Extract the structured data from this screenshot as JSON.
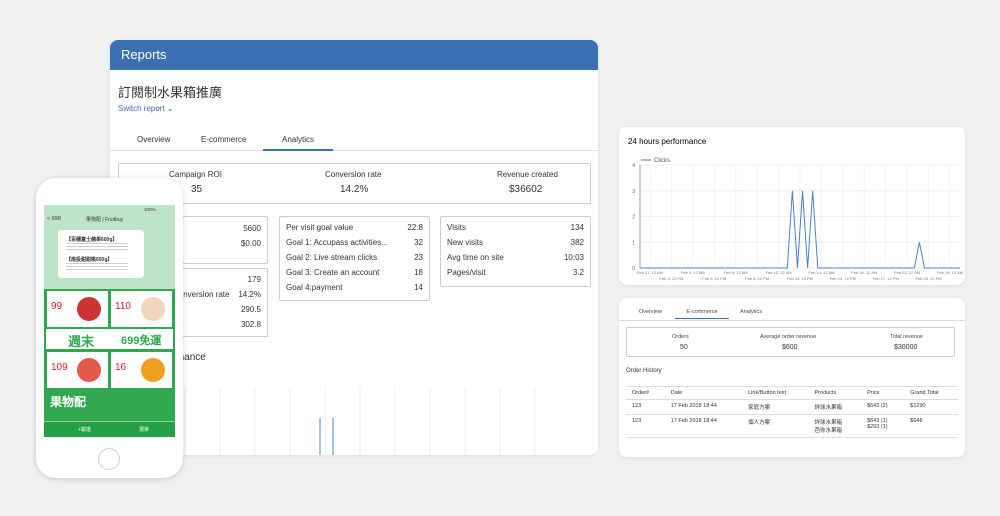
{
  "reports": {
    "header": "Reports",
    "title": "訂閱制水果箱推廣",
    "switch": "Switch report ⌄",
    "tabs": [
      "Overview",
      "E-commerce",
      "Analytics"
    ],
    "summary": [
      {
        "label": "Campaign ROI",
        "value": "35"
      },
      {
        "label": "Conversion rate",
        "value": "14.2%"
      },
      {
        "label": "Revenue created",
        "value": "$36602"
      }
    ],
    "box1": [
      "5600",
      "$0.00"
    ],
    "box2": [
      {
        "value": "179"
      },
      {
        "label": "Conversion rate",
        "value": "14.2%"
      },
      {
        "value": "290.5"
      },
      {
        "value": "302.8"
      }
    ],
    "goals": [
      [
        "Per visit goal value",
        "22.8"
      ],
      [
        "Goal 1: Accupass activities...",
        "32"
      ],
      [
        "Goal 2: Live stream clicks",
        "23"
      ],
      [
        "Goal 3: Create an account",
        "18"
      ],
      [
        "Goal 4:payment",
        "14"
      ]
    ],
    "visits": [
      [
        "Visits",
        "134"
      ],
      [
        "New visits",
        "382"
      ],
      [
        "Avg time on site",
        "10:03"
      ],
      [
        "Pages/visit",
        "3.2"
      ]
    ],
    "performance_title": "24 hours performance"
  },
  "clicks_chart": {
    "type": "line",
    "title": "24 hours performance",
    "legend": "Clicks",
    "color": "#4a7fd6",
    "ylim": [
      0,
      4
    ],
    "yticks": [
      0,
      1,
      2,
      3,
      4
    ],
    "xlabels": [
      "Feb 21, 12 AM",
      "Feb 3, 12 PM",
      "Feb 4, 12 AM",
      "Feb 5, 12 PM",
      "Feb 8, 12 AM",
      "Feb 9, 12 PM",
      "Feb 12, 12 AM",
      "Feb 13, 12 PM",
      "Feb 14, 12 AM",
      "Feb 15, 12 PM",
      "Feb 16, 12 AM",
      "Feb 17, 12 PM",
      "Feb 22, 12 AM",
      "Feb 23, 12 PM",
      "Feb 24, 12 AM"
    ],
    "values": [
      0,
      0,
      0,
      0,
      0,
      0,
      0,
      0,
      0,
      0,
      0,
      0,
      0,
      0,
      0,
      0,
      0,
      0,
      0,
      0,
      0,
      0,
      0,
      0,
      0,
      0,
      0,
      0,
      0,
      0,
      3,
      0,
      3,
      0,
      3,
      0,
      0,
      0,
      0,
      0,
      0,
      0,
      0,
      0,
      0,
      0,
      0,
      0,
      0,
      0,
      0,
      0,
      0,
      0,
      0,
      1,
      0,
      0,
      0,
      0,
      0,
      0,
      0,
      0
    ]
  },
  "orders": {
    "tabs": [
      "Overview",
      "E-commerce",
      "Analytics"
    ],
    "summary": [
      [
        "Orders",
        "50"
      ],
      [
        "Average order revenue",
        "$600"
      ],
      [
        "Total revenue",
        "$30000"
      ]
    ],
    "history_title": "Order History",
    "columns": [
      "Order#",
      "Date",
      "Link/Button text",
      "Products",
      "Price",
      "Grand Total"
    ],
    "rows": [
      [
        "123",
        "17 Feb 2018 18:44",
        "家庭方案",
        "詳球水果箱",
        "$643 (2)",
        "$1290"
      ],
      [
        "123",
        "17 Feb 2018 18:44",
        "個人方案",
        "詳球水果箱\n芭你水果箱",
        "$643 (1)\n$293 (1)",
        "$648"
      ]
    ]
  },
  "phone": {
    "battery": "100%",
    "back": "< 698",
    "account": "果物配 | Fruitbuy",
    "bubbles": [
      "【百穗富士蘋果600g】",
      "【南投甜甜桃600g】"
    ],
    "prices": [
      "99",
      "110",
      "109",
      "16"
    ],
    "banner": "週末",
    "promo": "699免運",
    "brand": "果物配",
    "nav": [
      "+驗證",
      "選單"
    ]
  }
}
